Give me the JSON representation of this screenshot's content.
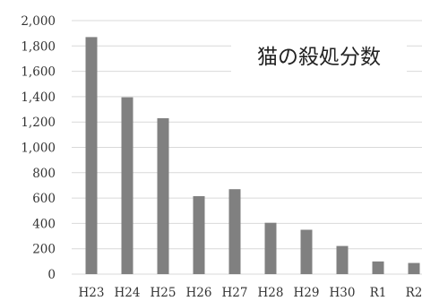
{
  "chart_data": {
    "type": "bar",
    "title": "猫の殺処分数",
    "categories": [
      "H23",
      "H24",
      "H25",
      "H26",
      "H27",
      "H28",
      "H29",
      "H30",
      "R1",
      "R2"
    ],
    "values": [
      1870,
      1395,
      1230,
      615,
      670,
      405,
      350,
      222,
      100,
      88
    ],
    "ylim": [
      0,
      2000
    ],
    "yticks": [
      "0",
      "200",
      "400",
      "600",
      "800",
      "1,000",
      "1,200",
      "1,400",
      "1,600",
      "1,800",
      "2,000"
    ],
    "xlabel": "",
    "ylabel": "",
    "grid": true,
    "colors": {
      "bar": "#808080",
      "grid": "#d9d9d9"
    }
  }
}
